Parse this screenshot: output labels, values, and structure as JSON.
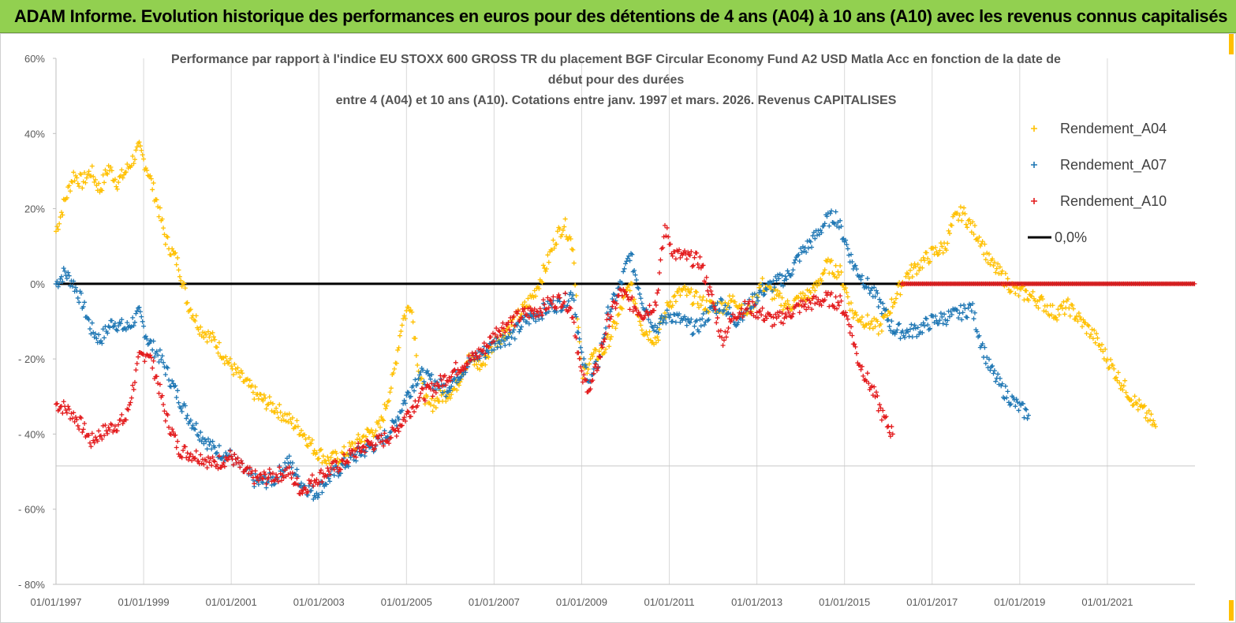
{
  "header": {
    "title": "ADAM Informe. Evolution historique des performances en euros pour des détentions de 4 ans (A04) à 10 ans (A10) avec les revenus connus capitalisés"
  },
  "colors": {
    "header_bg": "#92d050",
    "a04": "#ffc000",
    "a07": "#1f77b4",
    "a10": "#e31a1c",
    "zero_line": "#000000"
  },
  "chart_data": {
    "type": "scatter",
    "title_lines": [
      "Performance par rapport à l'indice EU STOXX 600 GROSS TR  du placement BGF Circular Economy Fund A2 USD Matla Acc en fonction de la date de",
      "début pour des durées",
      "entre 4 (A04) et 10 ans (A10). Cotations entre janv. 1997 et mars. 2026. Revenus CAPITALISES"
    ],
    "xlabel": "",
    "ylabel": "",
    "ylim": [
      -80,
      60
    ],
    "yticks": [
      60,
      40,
      20,
      0,
      -20,
      -40,
      -60,
      -80
    ],
    "ytick_labels": [
      "60%",
      "40%",
      "20%",
      "0%",
      "- 20%",
      "- 40%",
      "- 60%",
      "- 80%"
    ],
    "xlim": [
      1997.0,
      2023.0
    ],
    "xticks": [
      1997,
      1999,
      2001,
      2003,
      2005,
      2007,
      2009,
      2011,
      2013,
      2015,
      2017,
      2019,
      2021
    ],
    "xtick_labels": [
      "01/01/1997",
      "01/01/1999",
      "01/01/2001",
      "01/01/2003",
      "01/01/2005",
      "01/01/2007",
      "01/01/2009",
      "01/01/2011",
      "01/01/2013",
      "01/01/2015",
      "01/01/2017",
      "01/01/2019",
      "01/01/2021"
    ],
    "grid": "vertical",
    "legend_position": "top-right",
    "series": [
      {
        "name": "Rendement_A04",
        "marker": "+",
        "x": [
          1997.0,
          1997.2,
          1997.4,
          1997.6,
          1997.8,
          1998.0,
          1998.2,
          1998.4,
          1998.6,
          1998.9,
          1999.1,
          1999.3,
          1999.5,
          1999.8,
          2000.0,
          2000.3,
          2000.6,
          2001.0,
          2001.3,
          2001.6,
          2002.0,
          2002.3,
          2002.6,
          2002.9,
          2003.2,
          2003.5,
          2003.8,
          2004.1,
          2004.4,
          2004.7,
          2004.9,
          2005.1,
          2005.3,
          2005.5,
          2005.8,
          2006.1,
          2006.4,
          2006.7,
          2007.0,
          2007.3,
          2007.6,
          2007.9,
          2008.2,
          2008.4,
          2008.6,
          2008.8,
          2009.0,
          2009.2,
          2009.5,
          2009.8,
          2010.1,
          2010.4,
          2010.7,
          2011.0,
          2011.3,
          2011.6,
          2011.9,
          2012.2,
          2012.5,
          2012.8,
          2013.1,
          2013.4,
          2013.7,
          2014.0,
          2014.3,
          2014.6,
          2014.9,
          2015.2,
          2015.5,
          2015.8,
          2016.1,
          2016.4,
          2016.7,
          2017.0,
          2017.3,
          2017.5,
          2017.7,
          2017.9,
          2018.1,
          2018.3,
          2018.6,
          2018.9,
          2019.2,
          2019.5,
          2019.8,
          2020.1,
          2020.4,
          2020.7,
          2021.0,
          2021.3,
          2021.6,
          2021.9,
          2022.1
        ],
        "y": [
          14,
          22,
          29,
          27,
          30,
          25,
          31,
          27,
          30,
          36,
          30,
          22,
          12,
          5,
          -5,
          -12,
          -15,
          -22,
          -26,
          -30,
          -33,
          -36,
          -39,
          -44,
          -47,
          -46,
          -43,
          -40,
          -38,
          -25,
          -10,
          -5,
          -25,
          -33,
          -30,
          -28,
          -20,
          -22,
          -16,
          -12,
          -8,
          -3,
          5,
          12,
          16,
          10,
          -25,
          -20,
          -18,
          -10,
          0,
          -12,
          -15,
          -5,
          -2,
          -4,
          -6,
          -6,
          -4,
          -8,
          0,
          -3,
          -6,
          -4,
          -2,
          5,
          3,
          -8,
          -10,
          -12,
          -5,
          2,
          5,
          8,
          10,
          17,
          19,
          15,
          12,
          6,
          2,
          -2,
          -3,
          -5,
          -8,
          -6,
          -10,
          -14,
          -20,
          -26,
          -31,
          -35,
          -38
        ]
      },
      {
        "name": "Rendement_A07",
        "marker": "+",
        "x": [
          1997.0,
          1997.2,
          1997.4,
          1997.6,
          1997.8,
          1998.0,
          1998.3,
          1998.6,
          1998.9,
          1999.1,
          1999.4,
          1999.7,
          2000.0,
          2000.3,
          2000.6,
          2001.0,
          2001.3,
          2001.6,
          2002.0,
          2002.3,
          2002.6,
          2002.9,
          2003.2,
          2003.5,
          2003.8,
          2004.1,
          2004.4,
          2004.7,
          2005.0,
          2005.3,
          2005.6,
          2005.9,
          2006.2,
          2006.5,
          2006.8,
          2007.1,
          2007.4,
          2007.7,
          2008.0,
          2008.3,
          2008.6,
          2008.8,
          2009.0,
          2009.2,
          2009.4,
          2009.6,
          2009.9,
          2010.1,
          2010.4,
          2010.7,
          2011.0,
          2011.3,
          2011.6,
          2011.9,
          2012.2,
          2012.5,
          2012.8,
          2013.1,
          2013.4,
          2013.7,
          2014.0,
          2014.3,
          2014.6,
          2014.8,
          2015.0,
          2015.2,
          2015.5,
          2015.8,
          2016.1,
          2016.4,
          2016.7,
          2017.0,
          2017.3,
          2017.6,
          2017.8,
          2017.9,
          2018.1,
          2018.3,
          2018.6,
          2018.9,
          2019.2
        ],
        "y": [
          0,
          3,
          0,
          -5,
          -12,
          -15,
          -10,
          -12,
          -8,
          -15,
          -20,
          -28,
          -35,
          -40,
          -44,
          -46,
          -50,
          -53,
          -52,
          -47,
          -53,
          -56,
          -52,
          -49,
          -46,
          -44,
          -42,
          -38,
          -30,
          -24,
          -26,
          -28,
          -24,
          -20,
          -18,
          -15,
          -14,
          -10,
          -8,
          -6,
          -5,
          -2,
          -20,
          -26,
          -20,
          -8,
          0,
          8,
          -5,
          -12,
          -8,
          -10,
          -12,
          -8,
          -5,
          -10,
          -6,
          -2,
          0,
          2,
          8,
          12,
          17,
          18,
          12,
          5,
          0,
          -5,
          -12,
          -13,
          -12,
          -10,
          -9,
          -8,
          -7,
          -6,
          -15,
          -22,
          -28,
          -32,
          -35
        ]
      },
      {
        "name": "Rendement_A10",
        "marker": "+",
        "x": [
          1997.0,
          1997.2,
          1997.4,
          1997.6,
          1997.8,
          1998.0,
          1998.3,
          1998.6,
          1998.9,
          1999.1,
          1999.3,
          1999.5,
          1999.8,
          2000.0,
          2000.3,
          2000.6,
          2001.0,
          2001.3,
          2001.6,
          2002.0,
          2002.3,
          2002.6,
          2002.9,
          2003.2,
          2003.5,
          2003.8,
          2004.1,
          2004.4,
          2004.7,
          2005.0,
          2005.3,
          2005.6,
          2005.9,
          2006.2,
          2006.5,
          2006.8,
          2007.1,
          2007.4,
          2007.7,
          2008.0,
          2008.3,
          2008.6,
          2008.8,
          2009.0,
          2009.2,
          2009.4,
          2009.6,
          2009.9,
          2010.1,
          2010.4,
          2010.7,
          2010.9,
          2011.1,
          2011.4,
          2011.7,
          2012.0,
          2012.2,
          2012.5,
          2012.8,
          2013.1,
          2013.4,
          2013.7,
          2014.0,
          2014.3,
          2014.6,
          2014.9,
          2015.1,
          2015.3,
          2015.5,
          2015.7,
          2015.9,
          2016.1
        ],
        "y": [
          -32,
          -33,
          -35,
          -38,
          -42,
          -40,
          -38,
          -36,
          -20,
          -18,
          -25,
          -35,
          -44,
          -45,
          -46,
          -48,
          -46,
          -50,
          -52,
          -51,
          -50,
          -55,
          -52,
          -50,
          -48,
          -45,
          -43,
          -42,
          -40,
          -35,
          -30,
          -28,
          -25,
          -22,
          -20,
          -17,
          -12,
          -10,
          -8,
          -7,
          -5,
          -4,
          -8,
          -25,
          -28,
          -20,
          -10,
          -2,
          -5,
          -8,
          -5,
          15,
          8,
          7,
          6,
          -5,
          -15,
          -8,
          -6,
          -8,
          -10,
          -8,
          -6,
          -5,
          -4,
          -5,
          -10,
          -20,
          -25,
          -30,
          -36,
          -40
        ]
      },
      {
        "name": "0,0%",
        "type": "line",
        "x": [
          1997.0,
          2023.0
        ],
        "y": [
          0,
          0
        ]
      }
    ],
    "extra_series_segment": {
      "name": "Rendement_A10",
      "x_start": 2016.3,
      "x_end": 2023.0,
      "y": 0
    }
  }
}
